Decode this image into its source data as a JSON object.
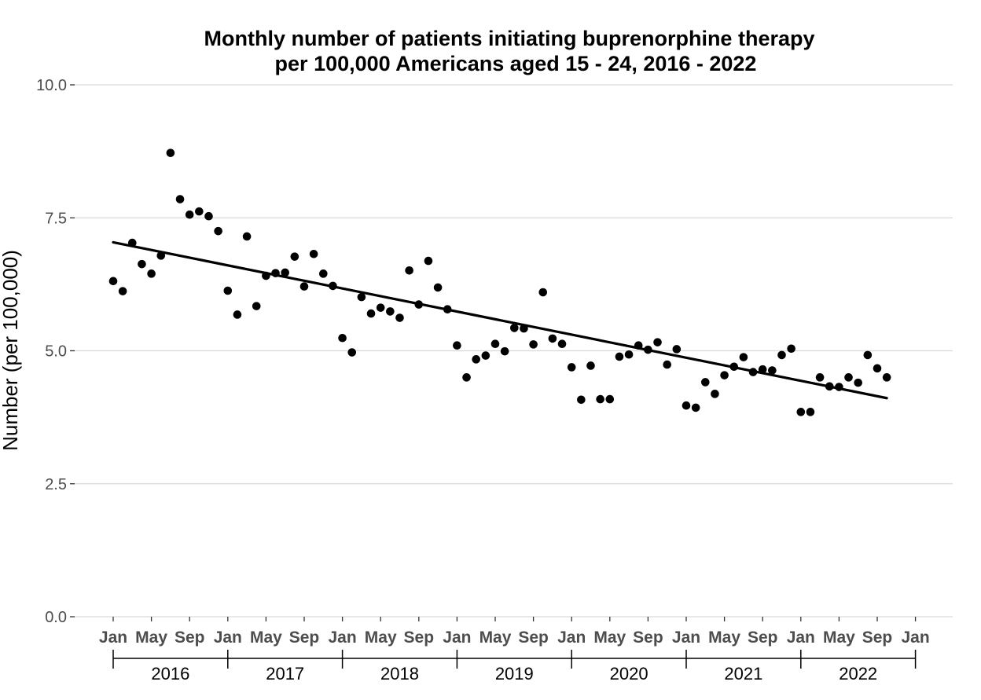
{
  "chart_data": {
    "type": "scatter",
    "title_line1": "Monthly number of patients initiating buprenorphine therapy",
    "title_line2": "per 100,000 Americans aged 15 - 24, 2016 - 2022",
    "xlabel": "",
    "ylabel": "Number (per 100,000)",
    "ylim": [
      0,
      10
    ],
    "y_ticks": [
      "0.0",
      "2.5",
      "5.0",
      "7.5",
      "10.0"
    ],
    "x_month_labels": [
      "Jan",
      "May",
      "Sep"
    ],
    "x_final_label": "Jan",
    "years": [
      "2016",
      "2017",
      "2018",
      "2019",
      "2020",
      "2021",
      "2022"
    ],
    "grid": true,
    "legend": "none",
    "points": [
      {
        "x": "2016-01",
        "y": 6.31
      },
      {
        "x": "2016-02",
        "y": 6.12
      },
      {
        "x": "2016-03",
        "y": 7.03
      },
      {
        "x": "2016-04",
        "y": 6.63
      },
      {
        "x": "2016-05",
        "y": 6.45
      },
      {
        "x": "2016-06",
        "y": 6.79
      },
      {
        "x": "2016-07",
        "y": 8.72
      },
      {
        "x": "2016-08",
        "y": 7.85
      },
      {
        "x": "2016-09",
        "y": 7.56
      },
      {
        "x": "2016-10",
        "y": 7.62
      },
      {
        "x": "2016-11",
        "y": 7.53
      },
      {
        "x": "2016-12",
        "y": 7.25
      },
      {
        "x": "2017-01",
        "y": 6.13
      },
      {
        "x": "2017-02",
        "y": 5.68
      },
      {
        "x": "2017-03",
        "y": 7.15
      },
      {
        "x": "2017-04",
        "y": 5.84
      },
      {
        "x": "2017-05",
        "y": 6.41
      },
      {
        "x": "2017-06",
        "y": 6.46
      },
      {
        "x": "2017-07",
        "y": 6.47
      },
      {
        "x": "2017-08",
        "y": 6.77
      },
      {
        "x": "2017-09",
        "y": 6.21
      },
      {
        "x": "2017-10",
        "y": 6.82
      },
      {
        "x": "2017-11",
        "y": 6.45
      },
      {
        "x": "2017-12",
        "y": 6.22
      },
      {
        "x": "2018-01",
        "y": 5.24
      },
      {
        "x": "2018-02",
        "y": 4.97
      },
      {
        "x": "2018-03",
        "y": 6.01
      },
      {
        "x": "2018-04",
        "y": 5.7
      },
      {
        "x": "2018-05",
        "y": 5.81
      },
      {
        "x": "2018-06",
        "y": 5.74
      },
      {
        "x": "2018-07",
        "y": 5.62
      },
      {
        "x": "2018-08",
        "y": 6.51
      },
      {
        "x": "2018-09",
        "y": 5.87
      },
      {
        "x": "2018-10",
        "y": 6.69
      },
      {
        "x": "2018-11",
        "y": 6.19
      },
      {
        "x": "2018-12",
        "y": 5.78
      },
      {
        "x": "2019-01",
        "y": 5.1
      },
      {
        "x": "2019-02",
        "y": 4.5
      },
      {
        "x": "2019-03",
        "y": 4.84
      },
      {
        "x": "2019-04",
        "y": 4.91
      },
      {
        "x": "2019-05",
        "y": 5.13
      },
      {
        "x": "2019-06",
        "y": 4.99
      },
      {
        "x": "2019-07",
        "y": 5.43
      },
      {
        "x": "2019-08",
        "y": 5.42
      },
      {
        "x": "2019-09",
        "y": 5.12
      },
      {
        "x": "2019-10",
        "y": 6.1
      },
      {
        "x": "2019-11",
        "y": 5.23
      },
      {
        "x": "2019-12",
        "y": 5.13
      },
      {
        "x": "2020-01",
        "y": 4.69
      },
      {
        "x": "2020-02",
        "y": 4.08
      },
      {
        "x": "2020-03",
        "y": 4.72
      },
      {
        "x": "2020-04",
        "y": 4.09
      },
      {
        "x": "2020-05",
        "y": 4.09
      },
      {
        "x": "2020-06",
        "y": 4.89
      },
      {
        "x": "2020-07",
        "y": 4.93
      },
      {
        "x": "2020-08",
        "y": 5.1
      },
      {
        "x": "2020-09",
        "y": 5.02
      },
      {
        "x": "2020-10",
        "y": 5.16
      },
      {
        "x": "2020-11",
        "y": 4.74
      },
      {
        "x": "2020-12",
        "y": 5.03
      },
      {
        "x": "2021-01",
        "y": 3.97
      },
      {
        "x": "2021-02",
        "y": 3.93
      },
      {
        "x": "2021-03",
        "y": 4.41
      },
      {
        "x": "2021-04",
        "y": 4.19
      },
      {
        "x": "2021-05",
        "y": 4.54
      },
      {
        "x": "2021-06",
        "y": 4.7
      },
      {
        "x": "2021-07",
        "y": 4.88
      },
      {
        "x": "2021-08",
        "y": 4.6
      },
      {
        "x": "2021-09",
        "y": 4.65
      },
      {
        "x": "2021-10",
        "y": 4.63
      },
      {
        "x": "2021-11",
        "y": 4.92
      },
      {
        "x": "2021-12",
        "y": 5.04
      },
      {
        "x": "2022-01",
        "y": 3.85
      },
      {
        "x": "2022-02",
        "y": 3.85
      },
      {
        "x": "2022-03",
        "y": 4.5
      },
      {
        "x": "2022-04",
        "y": 4.33
      },
      {
        "x": "2022-05",
        "y": 4.32
      },
      {
        "x": "2022-06",
        "y": 4.5
      },
      {
        "x": "2022-07",
        "y": 4.4
      },
      {
        "x": "2022-08",
        "y": 4.92
      },
      {
        "x": "2022-09",
        "y": 4.67
      },
      {
        "x": "2022-10",
        "y": 4.5
      }
    ],
    "trend_line": {
      "x": [
        "2016-01",
        "2022-10"
      ],
      "y": [
        7.04,
        4.11
      ]
    },
    "colors": {
      "points": "#000000",
      "trend": "#000000",
      "grid": "#d9d9d9",
      "tick_text": "#4d4d4d"
    }
  }
}
